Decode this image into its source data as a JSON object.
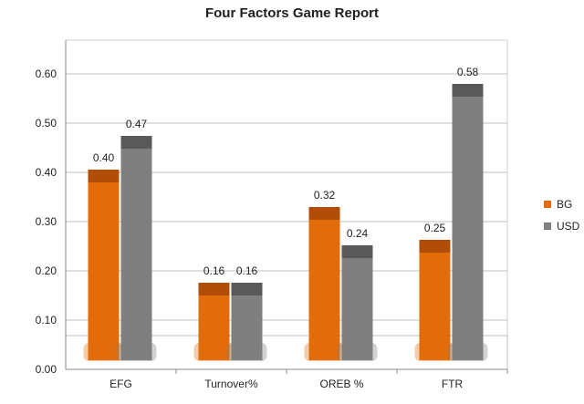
{
  "chart_data": {
    "type": "bar",
    "title": "Four Factors Game Report",
    "xlabel": "",
    "ylabel": "",
    "categories": [
      "EFG",
      "Turnover%",
      "OREB %",
      "FTR"
    ],
    "series": [
      {
        "name": "BG",
        "values": [
          0.4,
          0.16,
          0.32,
          0.25
        ],
        "color": "#e36c0a",
        "top_color": "#b14d06",
        "labels": [
          "0.40",
          "0.16",
          "0.32",
          "0.25"
        ]
      },
      {
        "name": "USD",
        "values": [
          0.47,
          0.16,
          0.24,
          0.58
        ],
        "color": "#7f7f7f",
        "top_color": "#595959",
        "labels": [
          "0.47",
          "0.16",
          "0.24",
          "0.58"
        ]
      }
    ],
    "ylim": [
      0,
      0.6
    ],
    "yticks": [
      "0.00",
      "0.10",
      "0.20",
      "0.30",
      "0.40",
      "0.50",
      "0.60"
    ],
    "grid": true,
    "legend_position": "right"
  }
}
